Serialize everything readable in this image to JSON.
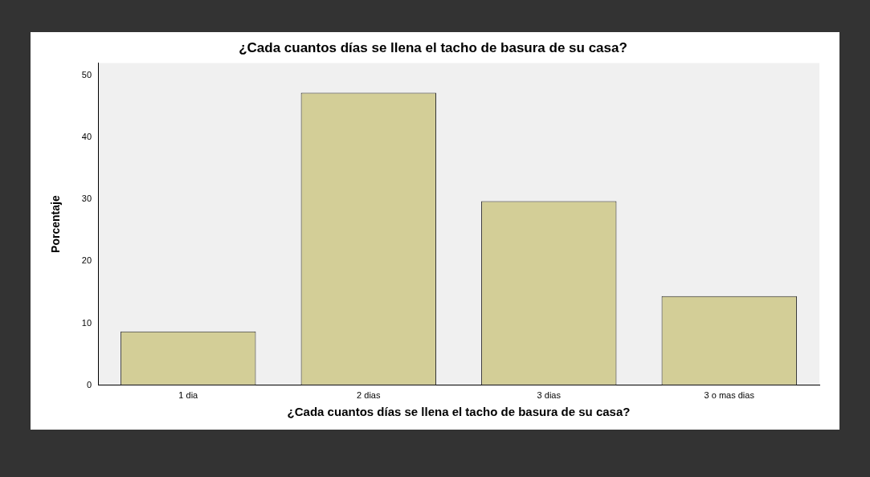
{
  "chart_data": {
    "type": "bar",
    "title": "¿Cada cuantos días se llena el tacho de basura de su casa?",
    "xlabel": "¿Cada cuantos días se llena el tacho de basura de su casa?",
    "ylabel": "Porcentaje",
    "categories": [
      "1 dia",
      "2 dias",
      "3 dias",
      "3 o mas dias"
    ],
    "values": [
      8.7,
      47.2,
      29.7,
      14.4
    ],
    "color": "#d3ce97",
    "ylim": [
      0,
      52
    ],
    "yticks": [
      0,
      10,
      20,
      30,
      40,
      50
    ],
    "grid": false,
    "legend": false
  }
}
